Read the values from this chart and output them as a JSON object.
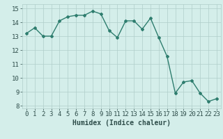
{
  "x": [
    0,
    1,
    2,
    3,
    4,
    5,
    6,
    7,
    8,
    9,
    10,
    11,
    12,
    13,
    14,
    15,
    16,
    17,
    18,
    19,
    20,
    21,
    22,
    23
  ],
  "y": [
    13.2,
    13.6,
    13.0,
    13.0,
    14.1,
    14.4,
    14.5,
    14.5,
    14.8,
    14.6,
    13.4,
    12.9,
    14.1,
    14.1,
    13.5,
    14.3,
    12.9,
    11.55,
    8.9,
    9.7,
    9.8,
    8.9,
    8.3,
    8.5
  ],
  "line_color": "#2e7d6e",
  "marker": "D",
  "markersize": 2.0,
  "linewidth": 1.0,
  "xlabel": "Humidex (Indice chaleur)",
  "xlim": [
    -0.5,
    23.5
  ],
  "ylim": [
    7.8,
    15.3
  ],
  "yticks": [
    8,
    9,
    10,
    11,
    12,
    13,
    14,
    15
  ],
  "xticks": [
    0,
    1,
    2,
    3,
    4,
    5,
    6,
    7,
    8,
    9,
    10,
    11,
    12,
    13,
    14,
    15,
    16,
    17,
    18,
    19,
    20,
    21,
    22,
    23
  ],
  "bg_color": "#d4eeea",
  "grid_color": "#b0ceca",
  "label_color": "#2e4d4a",
  "xlabel_fontsize": 7,
  "tick_fontsize": 6.5
}
